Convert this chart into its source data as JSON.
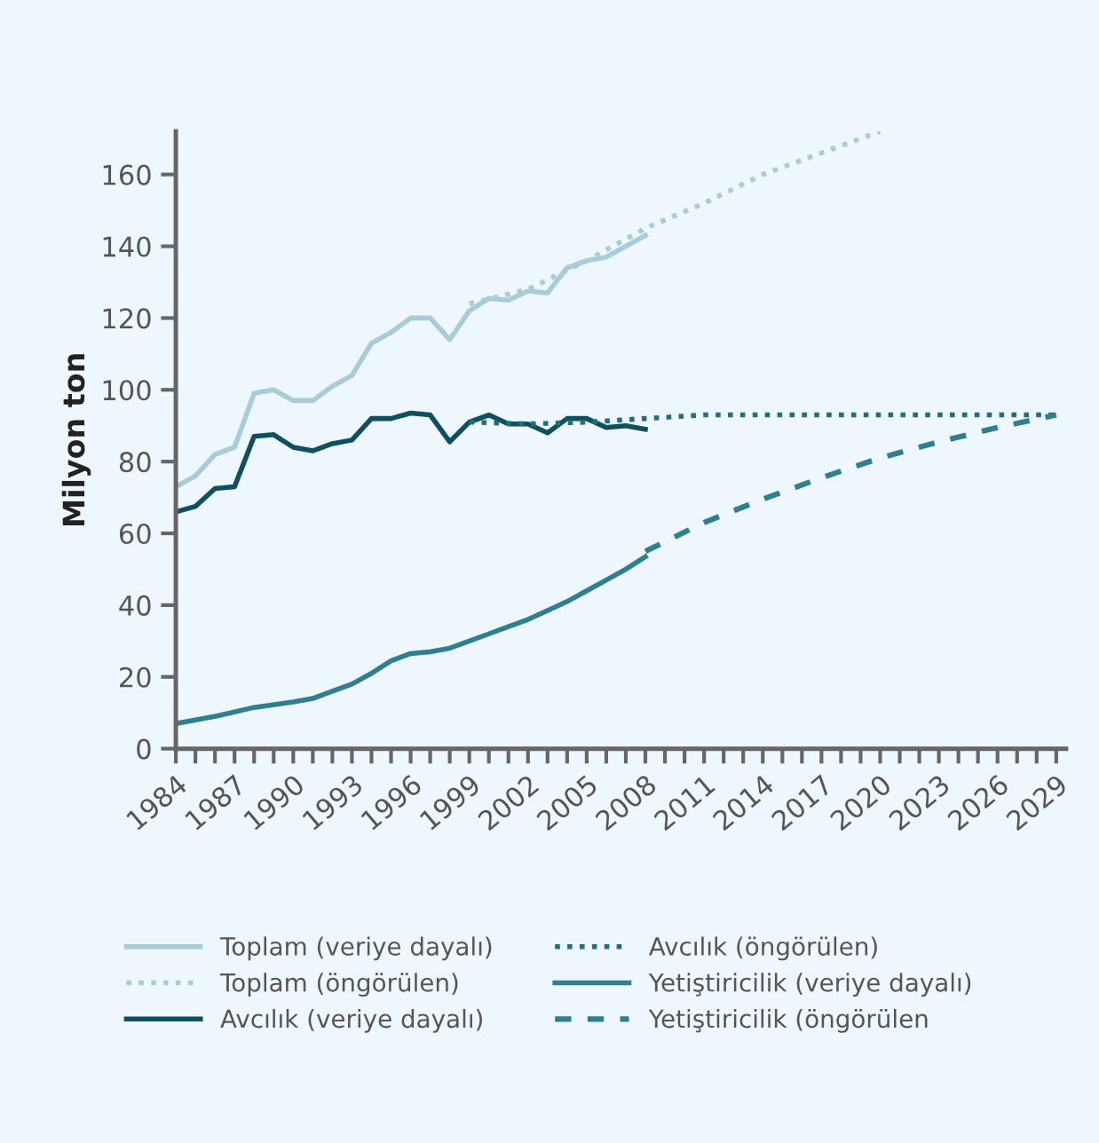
{
  "chart_data": {
    "type": "line",
    "ylabel": "Milyon ton",
    "xlim": [
      1984,
      2029.5
    ],
    "ylim": [
      0,
      172
    ],
    "xticks": [
      1984,
      {
        "value": 1985,
        "label": null
      },
      {
        "value": 1986,
        "label": null
      },
      1987,
      {
        "value": 1988,
        "label": null
      },
      {
        "value": 1989,
        "label": null
      },
      1990,
      {
        "value": 1991,
        "label": null
      },
      {
        "value": 1992,
        "label": null
      },
      1993,
      {
        "value": 1994,
        "label": null
      },
      {
        "value": 1995,
        "label": null
      },
      1996,
      {
        "value": 1997,
        "label": null
      },
      {
        "value": 1998,
        "label": null
      },
      1999,
      {
        "value": 2000,
        "label": null
      },
      {
        "value": 2001,
        "label": null
      },
      2002,
      {
        "value": 2003,
        "label": null
      },
      {
        "value": 2004,
        "label": null
      },
      2005,
      {
        "value": 2006,
        "label": null
      },
      {
        "value": 2007,
        "label": null
      },
      2008,
      {
        "value": 2009,
        "label": null
      },
      {
        "value": 2010,
        "label": null
      },
      2011,
      {
        "value": 2012,
        "label": null
      },
      {
        "value": 2013,
        "label": null
      },
      2014,
      {
        "value": 2015,
        "label": null
      },
      {
        "value": 2016,
        "label": null
      },
      2017,
      {
        "value": 2018,
        "label": null
      },
      {
        "value": 2019,
        "label": null
      },
      2020,
      {
        "value": 2021,
        "label": null
      },
      {
        "value": 2022,
        "label": null
      },
      2023,
      {
        "value": 2024,
        "label": null
      },
      {
        "value": 2025,
        "label": null
      },
      2026,
      {
        "value": 2027,
        "label": null
      },
      {
        "value": 2028,
        "label": null
      },
      2029
    ],
    "yticks": [
      0,
      20,
      40,
      60,
      80,
      100,
      120,
      140,
      160
    ],
    "grid": false,
    "legend": "bottom",
    "marker": "none",
    "series": [
      {
        "name": "Toplam (veriye dayalı)",
        "color": "#a8ccd8",
        "line_style": "solid",
        "x": [
          1984,
          1985,
          1986,
          1987,
          1988,
          1989,
          1990,
          1991,
          1992,
          1993,
          1994,
          1995,
          1996,
          1997,
          1998,
          1999,
          2000,
          2001,
          2002,
          2003,
          2004,
          2005,
          2006,
          2007,
          2008
        ],
        "values": [
          73,
          76,
          82,
          84,
          99,
          100,
          97,
          97,
          101,
          104,
          113,
          116,
          120,
          120,
          114,
          122,
          125.5,
          125,
          127.5,
          127,
          134,
          136,
          137,
          140,
          143
        ]
      },
      {
        "name": "Toplam (öngörülen)",
        "color": "#a8ccd8",
        "line_style": "dotted",
        "x": [
          1999,
          2002,
          2005,
          2008,
          2011,
          2014,
          2017,
          2020
        ],
        "values": [
          124,
          128,
          136,
          145,
          152,
          160,
          166,
          172
        ]
      },
      {
        "name": "Avcılık (veriye dayalı)",
        "color": "#0f5060",
        "line_style": "solid",
        "x": [
          1984,
          1985,
          1986,
          1987,
          1988,
          1989,
          1990,
          1991,
          1992,
          1993,
          1994,
          1995,
          1996,
          1997,
          1998,
          1999,
          2000,
          2001,
          2002,
          2003,
          2004,
          2005,
          2006,
          2007,
          2008
        ],
        "values": [
          66,
          67.5,
          72.5,
          73,
          87,
          87.5,
          84,
          83,
          85,
          86,
          92,
          92,
          93.5,
          93,
          85.5,
          91,
          93,
          90.5,
          90.5,
          88,
          92,
          92,
          89.5,
          90,
          89
        ]
      },
      {
        "name": "Avcılık (öngörülen)",
        "color": "#1f6f80",
        "line_style": "dotted",
        "x": [
          1999,
          2002,
          2005,
          2008,
          2011,
          2014,
          2017,
          2020,
          2023,
          2026,
          2029
        ],
        "values": [
          91,
          90.5,
          91,
          92,
          93,
          93,
          93,
          93,
          93,
          93,
          93
        ]
      },
      {
        "name": "Yetiştiricilik (veriye dayalı)",
        "color": "#2e7f90",
        "line_style": "solid",
        "x": [
          1984,
          1986,
          1988,
          1990,
          1991,
          1992,
          1993,
          1994,
          1995,
          1996,
          1997,
          1998,
          1999,
          2000,
          2001,
          2002,
          2003,
          2004,
          2005,
          2006,
          2007,
          2008
        ],
        "values": [
          7,
          9,
          11.5,
          13,
          14,
          16,
          18,
          21,
          24.5,
          26.5,
          27,
          28,
          30,
          32,
          34,
          36,
          38.5,
          41,
          44,
          47,
          50,
          53.5
        ]
      },
      {
        "name": "Yetiştiricilik (öngörülen",
        "color": "#2e7f90",
        "line_style": "dashed",
        "x": [
          2008,
          2011,
          2014,
          2017,
          2020,
          2023,
          2026,
          2029
        ],
        "values": [
          55,
          63,
          69.5,
          75.5,
          81,
          85.5,
          89.5,
          93
        ]
      }
    ]
  }
}
